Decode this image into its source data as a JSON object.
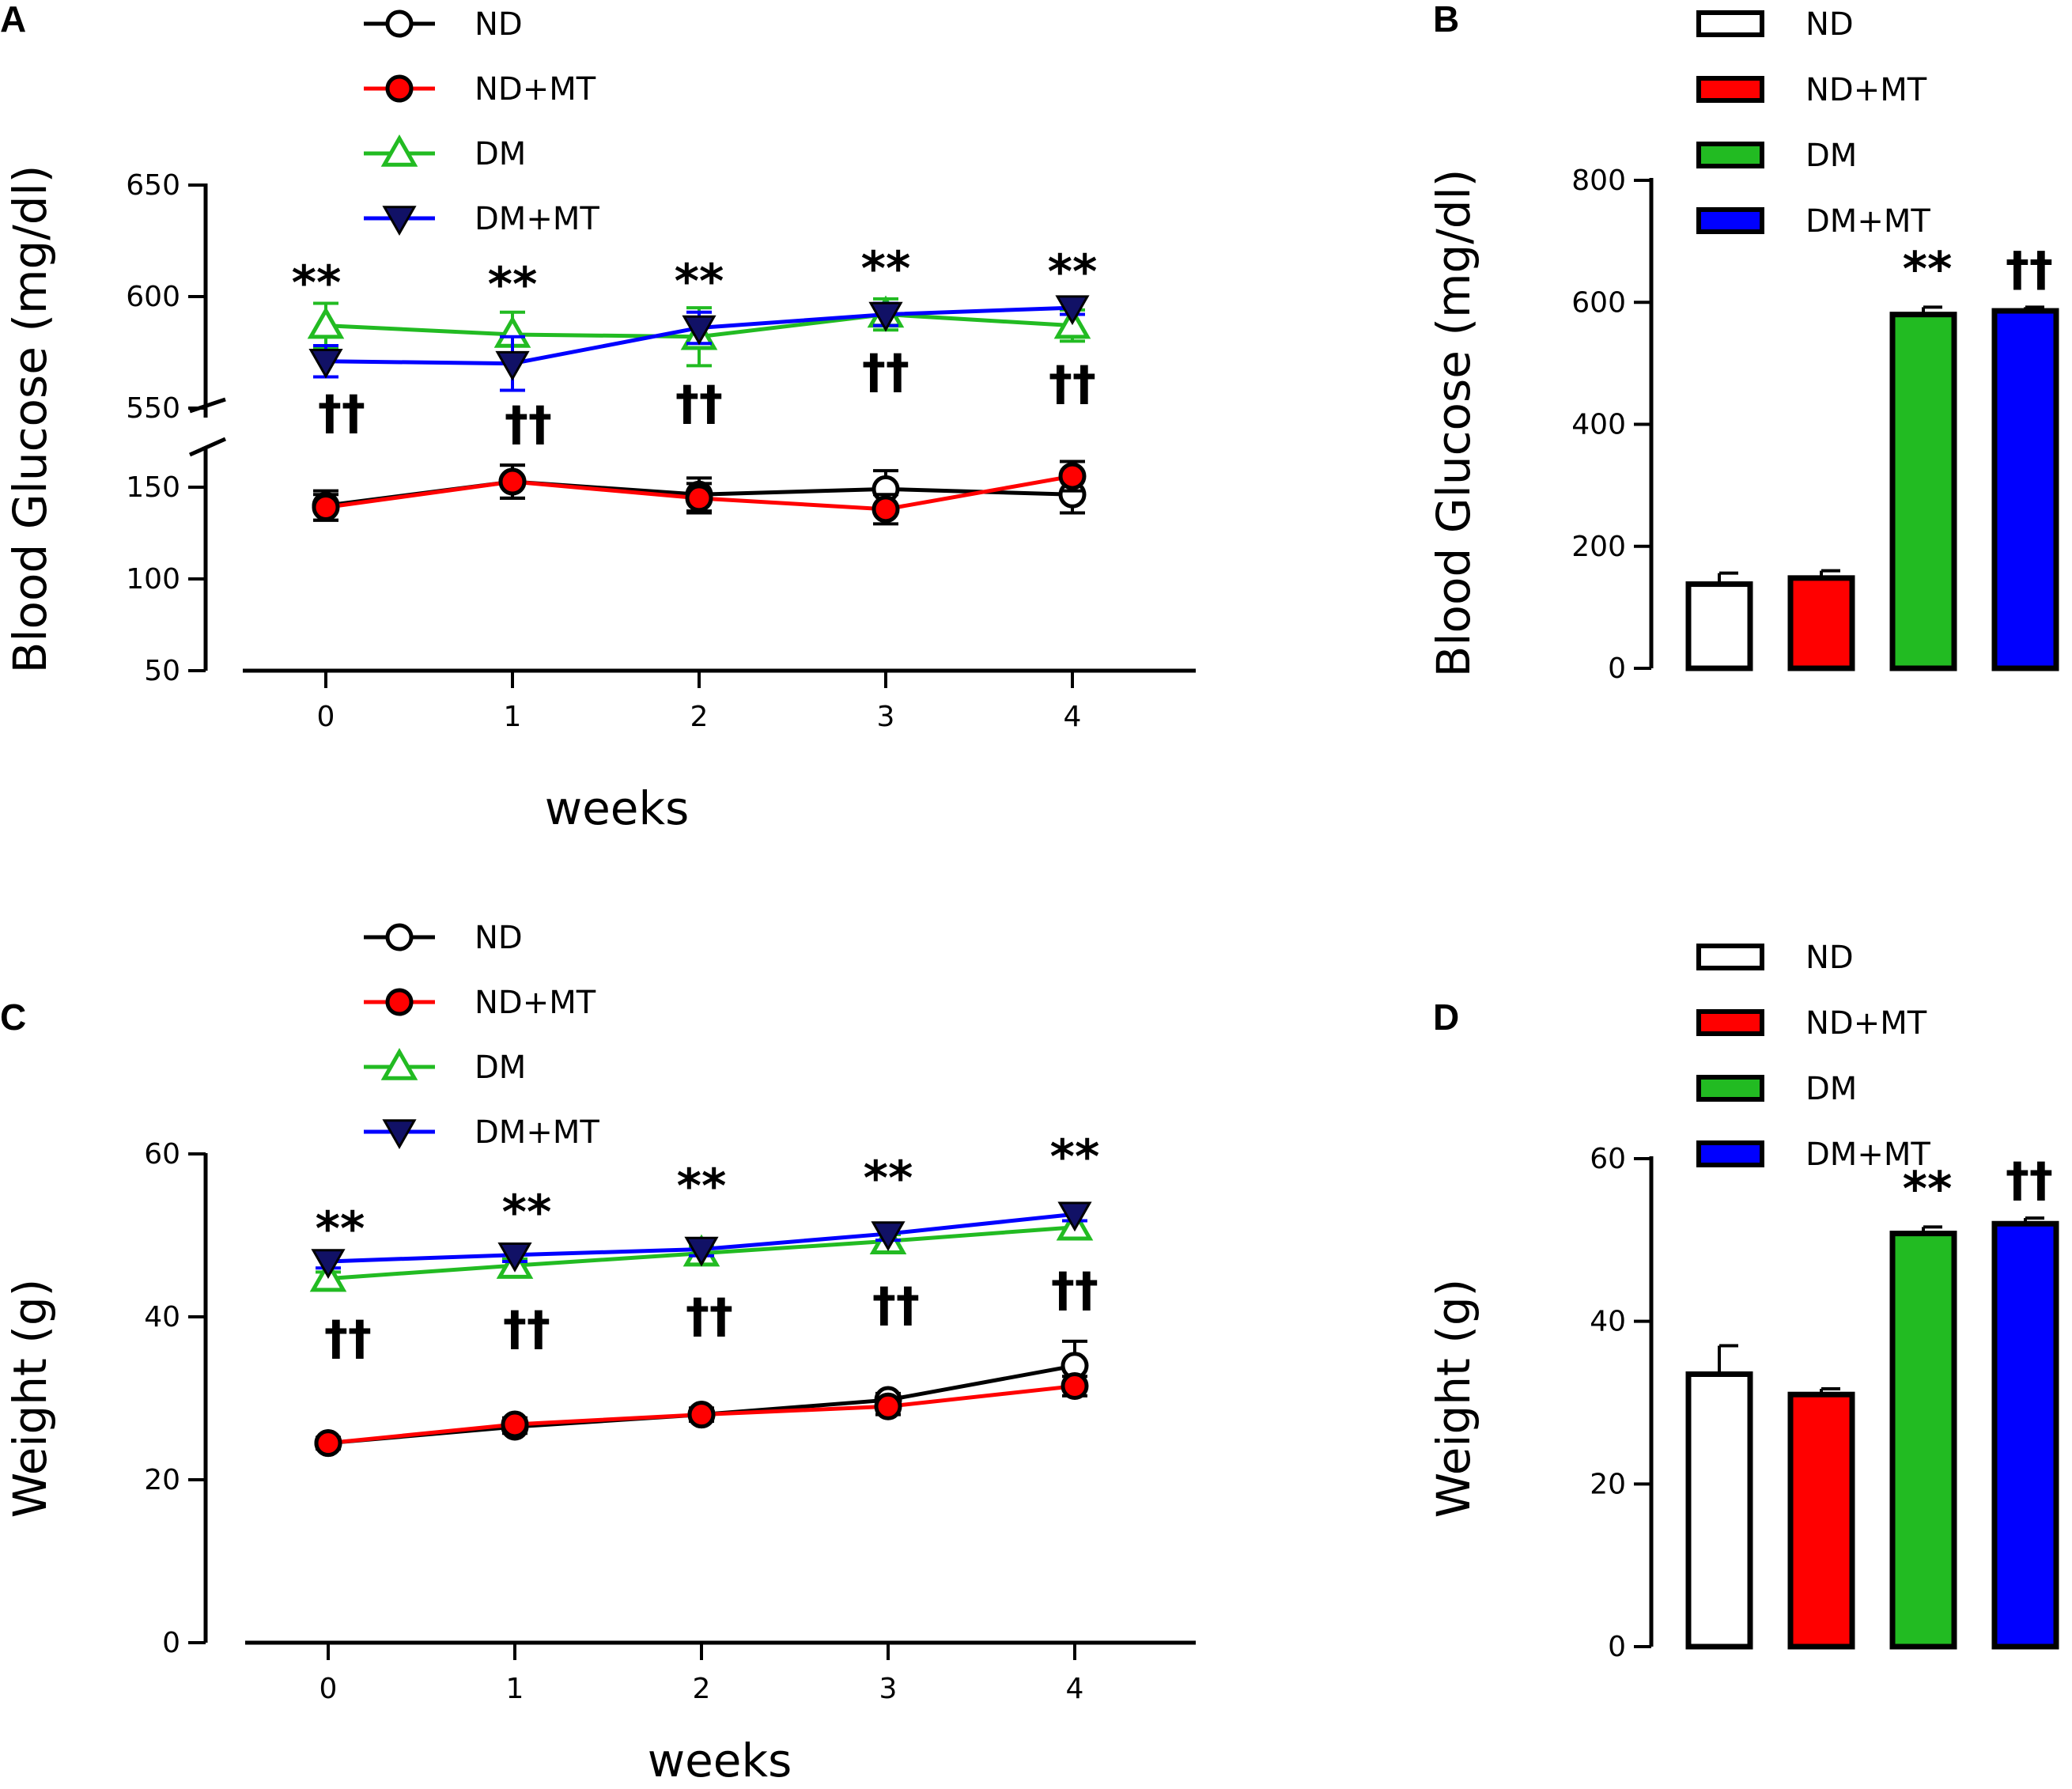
{
  "panels": {
    "A": {
      "letter": "A",
      "chart_data": {
        "type": "line",
        "title": "",
        "xlabel": "weeks",
        "ylabel": "Blood Glucose (mg/dl)",
        "x": [
          0,
          1,
          2,
          3,
          4
        ],
        "x_tick_labels": [
          "0",
          "1",
          "2",
          "3",
          "4"
        ],
        "y_tick_labels": [
          "50",
          "100",
          "150",
          "550",
          "600",
          "650"
        ],
        "axis_break": "between 150 and 550",
        "ylim_lower_segment": [
          50,
          160
        ],
        "ylim_upper_segment": [
          550,
          650
        ],
        "series": [
          {
            "name": "ND",
            "color": "#000000",
            "marker": "open-circle",
            "values": [
              140,
              153,
              146,
              149,
              146
            ],
            "err": [
              8,
              9,
              9,
              10,
              10
            ]
          },
          {
            "name": "ND+MT",
            "color": "#ff0000",
            "marker": "filled-circle",
            "values": [
              139,
              153,
              144,
              138,
              156
            ],
            "err": [
              7,
              9,
              8,
              8,
              8
            ]
          },
          {
            "name": "DM",
            "color": "#22bb22",
            "marker": "open-triangle-up",
            "values": [
              587,
              583,
              582,
              592,
              587
            ],
            "err": [
              10,
              10,
              13,
              7,
              7
            ]
          },
          {
            "name": "DM+MT",
            "color": "#0000ff",
            "marker": "filled-triangle-down",
            "values": [
              571,
              570,
              586,
              592,
              595
            ],
            "err": [
              7,
              12,
              7,
              5,
              3
            ]
          }
        ],
        "significance_top": [
          "**",
          "**",
          "**",
          "**",
          "**"
        ],
        "significance_bottom": [
          "††",
          "††",
          "††",
          "††",
          "††"
        ]
      }
    },
    "B": {
      "letter": "B",
      "chart_data": {
        "type": "bar",
        "title": "",
        "xlabel": "",
        "ylabel": "Blood Glucose (mg/dl)",
        "categories": [
          "ND",
          "ND+MT",
          "DM",
          "DM+MT"
        ],
        "colors": [
          "#ffffff",
          "#ff0000",
          "#22bb22",
          "#0000ff"
        ],
        "values": [
          138,
          148,
          580,
          586
        ],
        "err": [
          18,
          12,
          12,
          6
        ],
        "ylim": [
          0,
          800
        ],
        "y_tick_labels": [
          "0",
          "200",
          "400",
          "600",
          "800"
        ],
        "significance": [
          "",
          "",
          "**",
          "††"
        ]
      }
    },
    "C": {
      "letter": "C",
      "chart_data": {
        "type": "line",
        "title": "",
        "xlabel": "weeks",
        "ylabel": "Weight (g)",
        "x": [
          0,
          1,
          2,
          3,
          4
        ],
        "x_tick_labels": [
          "0",
          "1",
          "2",
          "3",
          "4"
        ],
        "y_tick_labels": [
          "0",
          "20",
          "40",
          "60"
        ],
        "ylim": [
          0,
          60
        ],
        "series": [
          {
            "name": "ND",
            "color": "#000000",
            "marker": "open-circle",
            "values": [
              24.5,
              26.5,
              28,
              29.8,
              34
            ],
            "err": [
              0.7,
              0.8,
              0.8,
              0.8,
              3
            ]
          },
          {
            "name": "ND+MT",
            "color": "#ff0000",
            "marker": "filled-circle",
            "values": [
              24.5,
              26.8,
              28,
              29,
              31.5
            ],
            "err": [
              0.7,
              0.8,
              0.8,
              1,
              1.2
            ]
          },
          {
            "name": "DM",
            "color": "#22bb22",
            "marker": "open-triangle-up",
            "values": [
              44.7,
              46.3,
              47.8,
              49.3,
              51
            ],
            "err": [
              0.8,
              0.8,
              0.8,
              0.8,
              0.8
            ]
          },
          {
            "name": "DM+MT",
            "color": "#0000ff",
            "marker": "filled-triangle-down",
            "values": [
              46.8,
              47.6,
              48.3,
              50.2,
              52.6
            ],
            "err": [
              0.8,
              0.8,
              0.8,
              0.8,
              0.8
            ]
          }
        ],
        "significance_top": [
          "**",
          "**",
          "**",
          "**",
          "**"
        ],
        "significance_bottom": [
          "††",
          "††",
          "††",
          "††",
          "††"
        ]
      }
    },
    "D": {
      "letter": "D",
      "chart_data": {
        "type": "bar",
        "title": "",
        "xlabel": "",
        "ylabel": "Weight (g)",
        "categories": [
          "ND",
          "ND+MT",
          "DM",
          "DM+MT"
        ],
        "colors": [
          "#ffffff",
          "#ff0000",
          "#22bb22",
          "#0000ff"
        ],
        "values": [
          33.5,
          31,
          50.8,
          52
        ],
        "err": [
          3.5,
          0.7,
          0.8,
          0.7
        ],
        "ylim": [
          0,
          60
        ],
        "y_tick_labels": [
          "0",
          "20",
          "40",
          "60"
        ],
        "significance": [
          "",
          "",
          "**",
          "††"
        ]
      }
    }
  }
}
